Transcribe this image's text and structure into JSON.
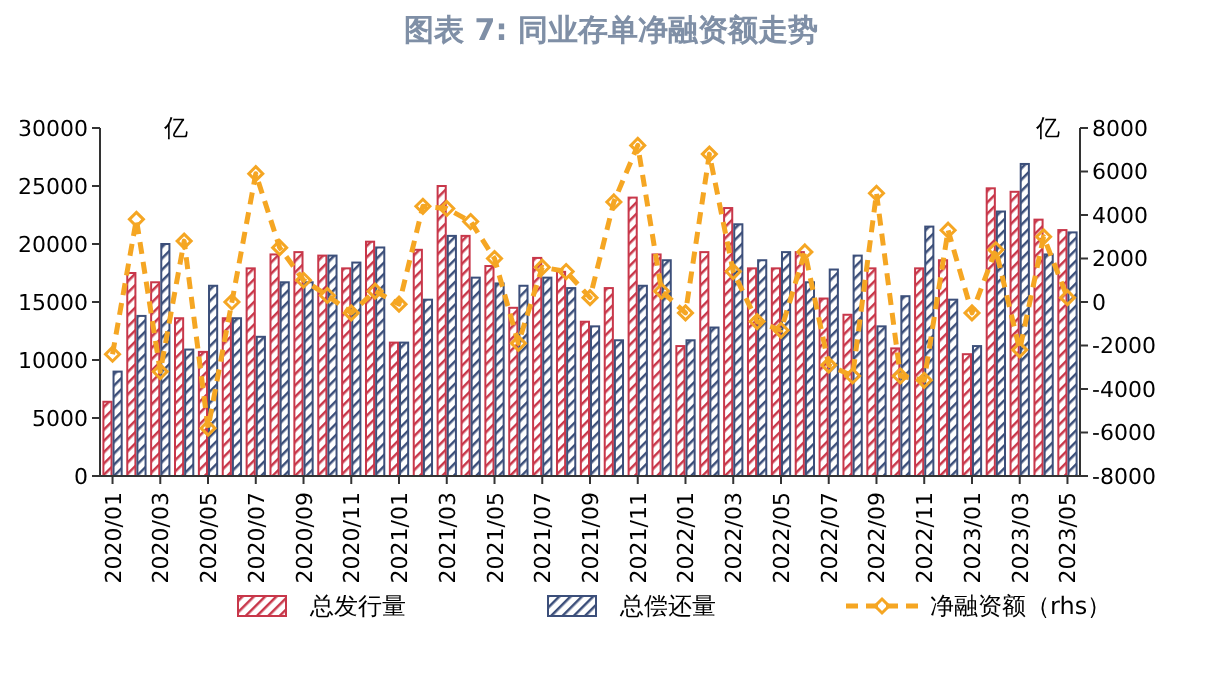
{
  "chart_data": {
    "type": "bar",
    "title": "图表 7: 同业存单净融资额走势",
    "categories": [
      "2020/01",
      null,
      "2020/03",
      null,
      "2020/05",
      null,
      "2020/07",
      null,
      "2020/09",
      null,
      "2020/11",
      null,
      "2021/01",
      null,
      "2021/03",
      null,
      "2021/05",
      null,
      "2021/07",
      null,
      "2021/09",
      null,
      "2021/11",
      null,
      "2022/01",
      null,
      "2022/03",
      null,
      "2022/05",
      null,
      "2022/07",
      null,
      "2022/09",
      null,
      "2022/11",
      null,
      "2023/01",
      null,
      "2023/03",
      null,
      "2023/05"
    ],
    "series": [
      {
        "name": "总发行量",
        "color": "#c8374a",
        "values": [
          6400,
          17500,
          16700,
          13600,
          10700,
          13600,
          17900,
          19100,
          19300,
          19000,
          17900,
          20200,
          11500,
          19500,
          25000,
          20700,
          18100,
          14500,
          18800,
          17600,
          13300,
          16200,
          24000,
          19100,
          11200,
          19300,
          23100,
          17900,
          17900,
          19300,
          15300,
          13900,
          17900,
          11000,
          17900,
          18600,
          10500,
          24800,
          24500,
          22100,
          21200
        ]
      },
      {
        "name": "总偿还量",
        "color": "#3c4f7a",
        "values": [
          9000,
          13800,
          20000,
          10900,
          16400,
          13600,
          12000,
          16700,
          16700,
          19000,
          18400,
          19700,
          11500,
          15200,
          20700,
          17100,
          16600,
          16400,
          17100,
          16200,
          12900,
          11700,
          16400,
          18600,
          11700,
          12800,
          21700,
          18600,
          19300,
          16700,
          17800,
          19000,
          12900,
          15500,
          21500,
          15200,
          11200,
          22800,
          26900,
          19100,
          21000
        ]
      },
      {
        "name": "净融资额（rhs）",
        "type": "line",
        "axis": "y2",
        "color": "#f5a623",
        "marker": "diamond",
        "line_style": "dashed",
        "values": [
          -2400,
          3800,
          -3200,
          2800,
          -5800,
          0,
          5900,
          2500,
          1000,
          300,
          -500,
          500,
          -100,
          4400,
          4300,
          3700,
          2000,
          -1900,
          1600,
          1400,
          200,
          4600,
          7200,
          500,
          -500,
          6800,
          1400,
          -900,
          -1300,
          2300,
          -2900,
          -3400,
          5000,
          -3400,
          -3600,
          3300,
          -500,
          2400,
          -2200,
          3000,
          200
        ]
      }
    ],
    "ylim": [
      0,
      30000
    ],
    "yticks": [
      0,
      5000,
      10000,
      15000,
      20000,
      25000,
      30000
    ],
    "y2lim": [
      -8000,
      8000
    ],
    "y2ticks": [
      -8000,
      -6000,
      -4000,
      -2000,
      0,
      2000,
      4000,
      6000,
      8000
    ],
    "annotations": [
      "亿",
      "亿"
    ],
    "legend": "bottom",
    "grid": false
  }
}
